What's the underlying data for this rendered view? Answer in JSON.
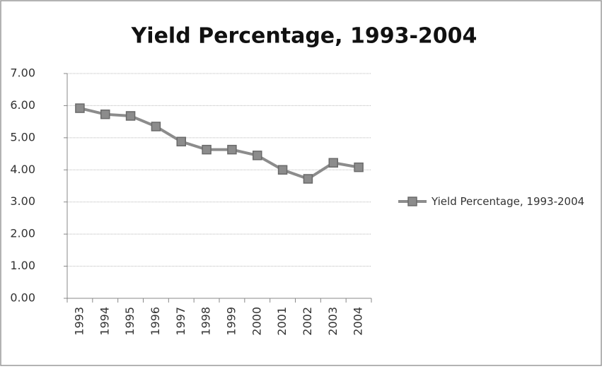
{
  "chart_data": {
    "type": "line",
    "title": "Yield Percentage, 1993-2004",
    "categories": [
      "1993",
      "1994",
      "1995",
      "1996",
      "1997",
      "1998",
      "1999",
      "2000",
      "2001",
      "2002",
      "2003",
      "2004"
    ],
    "series": [
      {
        "name": "Yield Percentage, 1993-2004",
        "color": "#8c8c8c",
        "values": [
          5.92,
          5.73,
          5.68,
          5.35,
          4.88,
          4.63,
          4.63,
          4.45,
          4.0,
          3.72,
          4.22,
          4.08
        ]
      }
    ],
    "ylim": [
      0,
      7
    ],
    "yticks": [
      {
        "value": 0,
        "label": "0.00"
      },
      {
        "value": 1,
        "label": "1.00"
      },
      {
        "value": 2,
        "label": "2.00"
      },
      {
        "value": 3,
        "label": "3.00"
      },
      {
        "value": 4,
        "label": "4.00"
      },
      {
        "value": 5,
        "label": "5.00"
      },
      {
        "value": 6,
        "label": "6.00"
      },
      {
        "value": 7,
        "label": "7.00"
      }
    ],
    "grid": true,
    "legend": "right"
  }
}
